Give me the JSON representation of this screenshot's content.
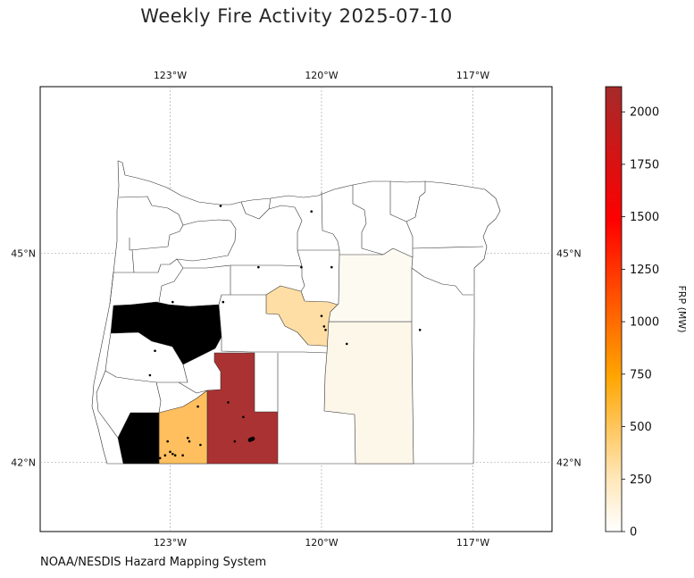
{
  "title": "Weekly Fire Activity 2025-07-10",
  "credit": "NOAA/NESDIS Hazard Mapping System",
  "axes": {
    "lon_ticks": [
      {
        "lon": -123,
        "label": "123°W"
      },
      {
        "lon": -120,
        "label": "120°W"
      },
      {
        "lon": -117,
        "label": "117°W"
      }
    ],
    "lat_ticks": [
      {
        "lat": 45,
        "label": "45°N"
      },
      {
        "lat": 42,
        "label": "42°N"
      }
    ],
    "lon_range": [
      -125.6,
      -115.4
    ],
    "lat_range": [
      41.0,
      47.4
    ]
  },
  "colorbar": {
    "label": "FRP (MW)",
    "min": 0,
    "max": 2120,
    "ticks": [
      0,
      250,
      500,
      750,
      1000,
      1250,
      1500,
      1750,
      2000
    ],
    "colors": [
      "#ffffff",
      "#ffd88a",
      "#ffa500",
      "#ff0000",
      "#a52a2a"
    ]
  },
  "counties": [
    {
      "frp": 2120,
      "color": "#ab3232"
    },
    {
      "frp": 480,
      "color": "#ffbf5e"
    },
    {
      "frp": 250,
      "color": "#ffdea5"
    },
    {
      "frp": 60,
      "color": "#fdf7ea"
    },
    {
      "frp": 40,
      "color": "#fdfaf2"
    }
  ],
  "fire_detections": [
    {
      "lon": -121.4,
      "lat": 42.33
    },
    {
      "lon": -121.38,
      "lat": 42.33
    },
    {
      "lon": -121.42,
      "lat": 42.32
    },
    {
      "lon": -121.36,
      "lat": 42.34
    },
    {
      "lon": -121.72,
      "lat": 42.3
    },
    {
      "lon": -121.85,
      "lat": 42.86
    },
    {
      "lon": -122.45,
      "lat": 42.8
    },
    {
      "lon": -121.55,
      "lat": 42.65
    },
    {
      "lon": -123.0,
      "lat": 42.15
    },
    {
      "lon": -122.95,
      "lat": 42.12
    },
    {
      "lon": -122.9,
      "lat": 42.1
    },
    {
      "lon": -122.65,
      "lat": 42.35
    },
    {
      "lon": -122.62,
      "lat": 42.3
    },
    {
      "lon": -122.75,
      "lat": 42.1
    },
    {
      "lon": -123.1,
      "lat": 42.1
    },
    {
      "lon": -123.45,
      "lat": 42.25
    },
    {
      "lon": -123.3,
      "lat": 42.15
    },
    {
      "lon": -123.2,
      "lat": 42.06
    },
    {
      "lon": -123.05,
      "lat": 42.3
    },
    {
      "lon": -122.4,
      "lat": 42.25
    },
    {
      "lon": -120.0,
      "lat": 44.1
    },
    {
      "lon": -119.95,
      "lat": 43.95
    },
    {
      "lon": -119.92,
      "lat": 43.9
    },
    {
      "lon": -119.8,
      "lat": 44.8
    },
    {
      "lon": -118.05,
      "lat": 43.9
    },
    {
      "lon": -119.5,
      "lat": 43.7
    },
    {
      "lon": -122.95,
      "lat": 44.3
    },
    {
      "lon": -123.3,
      "lat": 43.6
    },
    {
      "lon": -120.4,
      "lat": 44.8
    },
    {
      "lon": -121.25,
      "lat": 44.8
    },
    {
      "lon": -121.95,
      "lat": 44.3
    },
    {
      "lon": -120.2,
      "lat": 45.6
    },
    {
      "lon": -122.0,
      "lat": 45.68
    },
    {
      "lon": -123.4,
      "lat": 43.25
    }
  ]
}
